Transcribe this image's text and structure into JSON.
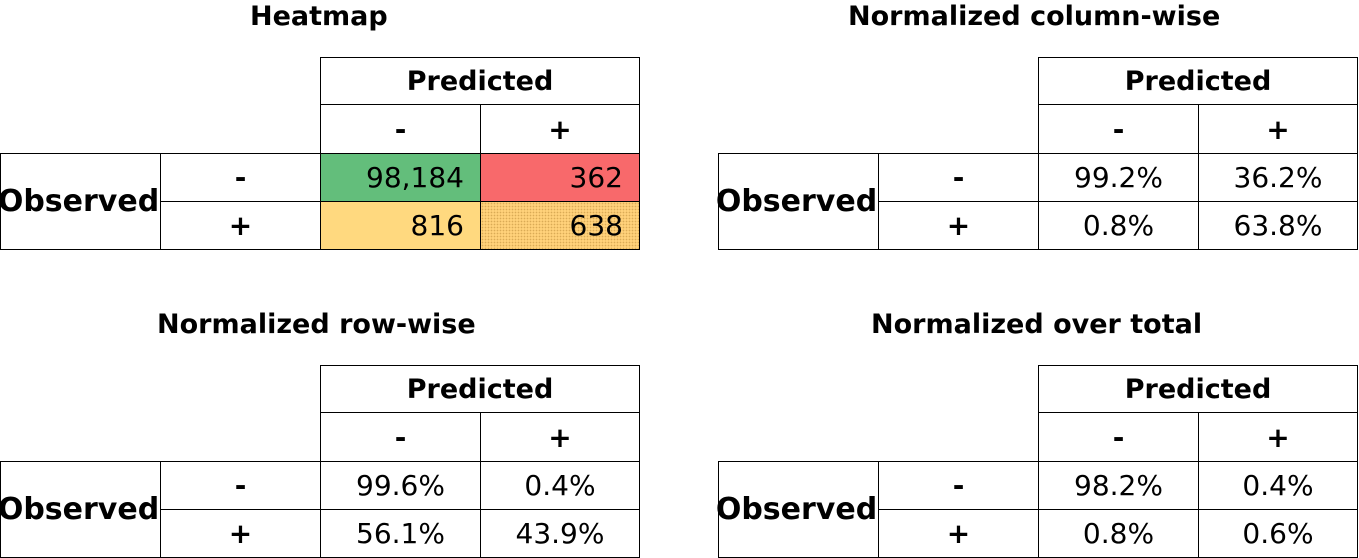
{
  "colors": {
    "heatmap_green": "#63BE7B",
    "heatmap_red": "#F8696B",
    "heatmap_yellow": "#FFD97F",
    "heatmap_yellow_dotted": "#FFD17A"
  },
  "chart_data": [
    {
      "type": "table",
      "title": "Heatmap",
      "column_header": "Predicted",
      "row_header": "Observed",
      "columns": [
        "-",
        "+"
      ],
      "rows": [
        "-",
        "+"
      ],
      "values": [
        [
          "98,184",
          "362"
        ],
        [
          "816",
          "638"
        ]
      ],
      "numeric_values": [
        [
          98184,
          362
        ],
        [
          816,
          638
        ]
      ]
    },
    {
      "type": "table",
      "title": "Normalized column-wise",
      "column_header": "Predicted",
      "row_header": "Observed",
      "columns": [
        "-",
        "+"
      ],
      "rows": [
        "-",
        "+"
      ],
      "values": [
        [
          "99.2%",
          "36.2%"
        ],
        [
          "0.8%",
          "63.8%"
        ]
      ]
    },
    {
      "type": "table",
      "title": "Normalized row-wise",
      "column_header": "Predicted",
      "row_header": "Observed",
      "columns": [
        "-",
        "+"
      ],
      "rows": [
        "-",
        "+"
      ],
      "values": [
        [
          "99.6%",
          "0.4%"
        ],
        [
          "56.1%",
          "43.9%"
        ]
      ]
    },
    {
      "type": "table",
      "title": "Normalized over total",
      "column_header": "Predicted",
      "row_header": "Observed",
      "columns": [
        "-",
        "+"
      ],
      "rows": [
        "-",
        "+"
      ],
      "values": [
        [
          "98.2%",
          "0.4%"
        ],
        [
          "0.8%",
          "0.6%"
        ]
      ]
    }
  ]
}
